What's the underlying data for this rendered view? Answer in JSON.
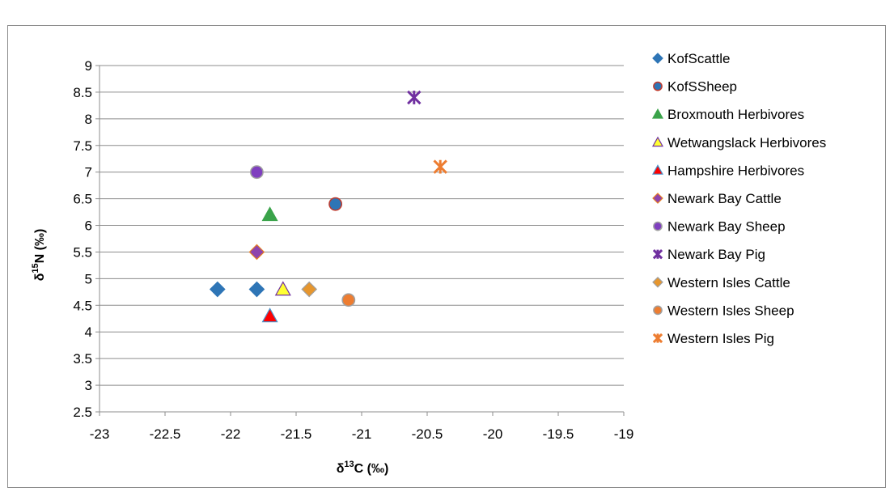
{
  "chart_data": {
    "type": "scatter",
    "xlim": [
      -23,
      -19
    ],
    "ylim": [
      2.5,
      9
    ],
    "x_ticks": [
      "-23",
      "-22.5",
      "-22",
      "-21.5",
      "-21",
      "-20.5",
      "-20",
      "-19.5",
      "-19"
    ],
    "y_ticks": [
      "2.5",
      "3",
      "3.5",
      "4",
      "4.5",
      "5",
      "5.5",
      "6",
      "6.5",
      "7",
      "7.5",
      "8",
      "8.5",
      "9"
    ],
    "xlabel_main": "δ",
    "xlabel_sup": "13",
    "xlabel_rest": "C (‰)",
    "ylabel_main": "δ",
    "ylabel_sup": "15",
    "ylabel_rest": "N (‰)",
    "grid": "horizontal",
    "legend_position": "right",
    "series": [
      {
        "name": "KofScattle",
        "marker": "diamond",
        "color": "#2e75b6",
        "stroke": "#2e75b6",
        "points": [
          [
            -22.1,
            4.8
          ],
          [
            -21.8,
            4.8
          ]
        ]
      },
      {
        "name": "KofSSheep",
        "marker": "circle",
        "color": "#2e75b6",
        "stroke": "#c0392b",
        "points": [
          [
            -21.2,
            6.4
          ]
        ]
      },
      {
        "name": "Broxmouth Herbivores",
        "marker": "triangle",
        "color": "#3aa34a",
        "stroke": "#3aa34a",
        "points": [
          [
            -21.7,
            6.2
          ]
        ]
      },
      {
        "name": "Wetwangslack Herbivores",
        "marker": "triangle",
        "color": "#ffff33",
        "stroke": "#7030a0",
        "points": [
          [
            -21.6,
            4.8
          ]
        ]
      },
      {
        "name": "Hampshire Herbivores",
        "marker": "triangle",
        "color": "#ff0000",
        "stroke": "#4a90c8",
        "points": [
          [
            -21.7,
            4.3
          ]
        ]
      },
      {
        "name": "Newark Bay Cattle",
        "marker": "diamond",
        "color": "#8e44ad",
        "stroke": "#e67e22",
        "points": [
          [
            -21.8,
            5.5
          ]
        ]
      },
      {
        "name": "Newark Bay Sheep",
        "marker": "circle",
        "color": "#7f3fbf",
        "stroke": "#a0a0a0",
        "points": [
          [
            -21.8,
            7.0
          ]
        ]
      },
      {
        "name": "Newark Bay Pig",
        "marker": "star",
        "color": "#7030a0",
        "stroke": "#7030a0",
        "points": [
          [
            -20.6,
            8.4
          ]
        ]
      },
      {
        "name": "Western Isles Cattle",
        "marker": "diamond",
        "color": "#e6962e",
        "stroke": "#a0a0a0",
        "points": [
          [
            -21.4,
            4.8
          ]
        ]
      },
      {
        "name": "Western Isles Sheep",
        "marker": "circle",
        "color": "#ed7d31",
        "stroke": "#a0a0a0",
        "points": [
          [
            -21.1,
            4.6
          ]
        ]
      },
      {
        "name": "Western Isles Pig",
        "marker": "xstar",
        "color": "#ed7d31",
        "stroke": "#ed7d31",
        "points": [
          [
            -20.4,
            7.1
          ]
        ]
      }
    ]
  }
}
